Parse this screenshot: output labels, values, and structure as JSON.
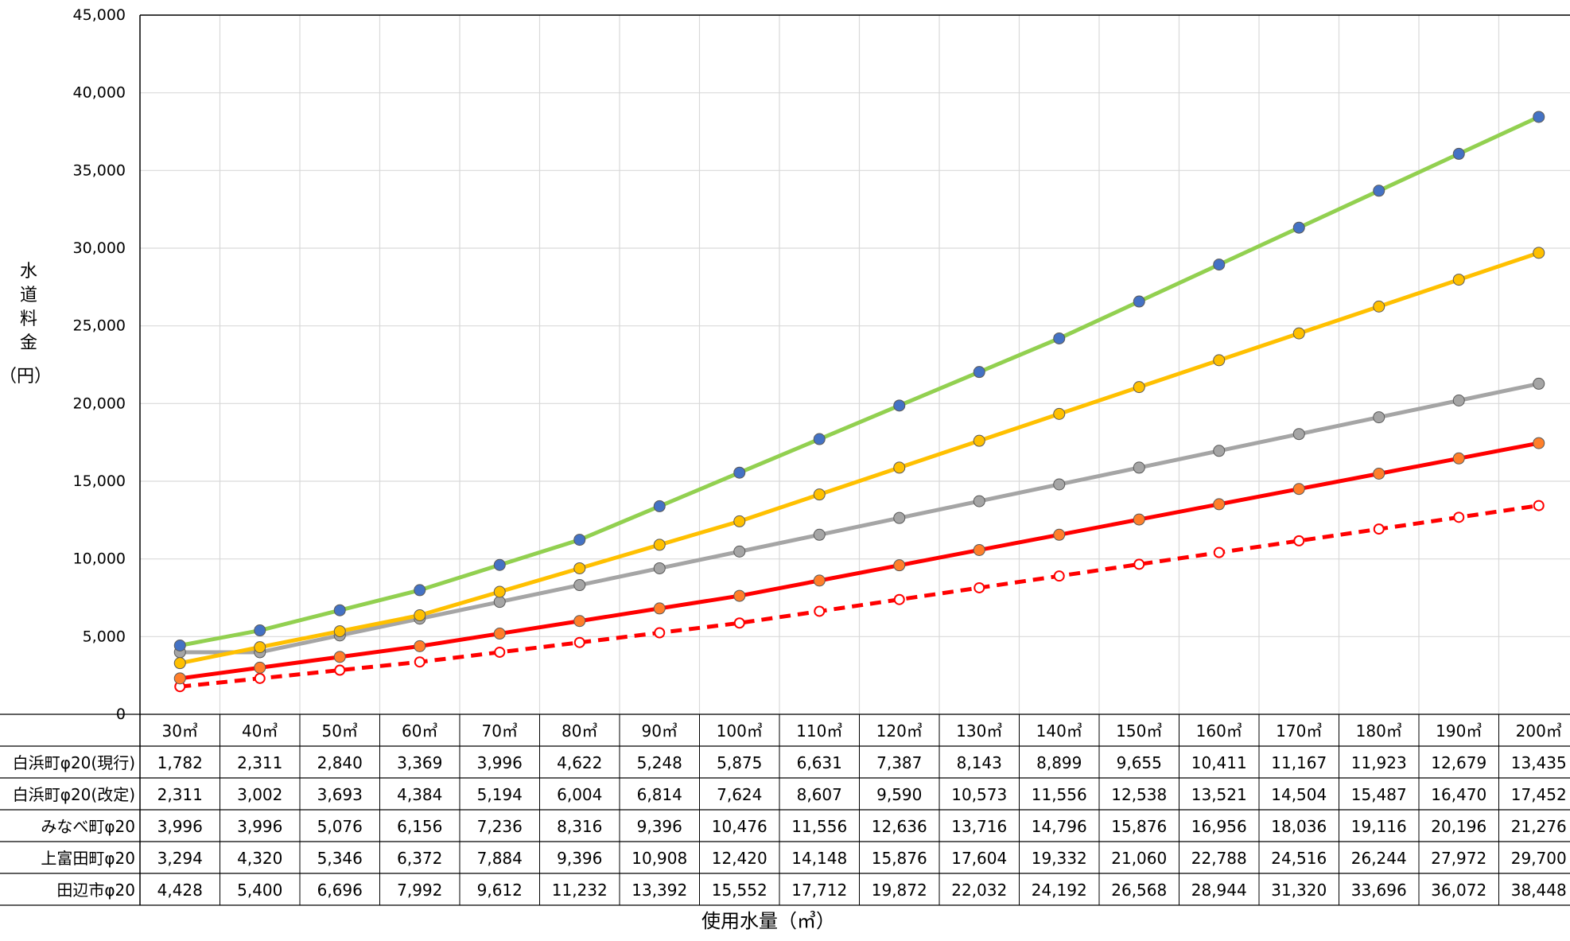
{
  "chart_data": {
    "type": "line",
    "ylabel": "水道料金（円）",
    "xlabel": "使用水量（㎥）",
    "ylim": [
      0,
      45000
    ],
    "yticks": [
      0,
      5000,
      10000,
      15000,
      20000,
      25000,
      30000,
      35000,
      40000,
      45000
    ],
    "ytick_labels": [
      "0",
      "5,000",
      "10,000",
      "15,000",
      "20,000",
      "25,000",
      "30,000",
      "35,000",
      "40,000",
      "45,000"
    ],
    "grid": true,
    "legend": "data table below chart",
    "categories": [
      "30㎥",
      "40㎥",
      "50㎥",
      "60㎥",
      "70㎥",
      "80㎥",
      "90㎥",
      "100㎥",
      "110㎥",
      "120㎥",
      "130㎥",
      "140㎥",
      "150㎥",
      "160㎥",
      "170㎥",
      "180㎥",
      "190㎥",
      "200㎥"
    ],
    "series": [
      {
        "name": "白浜町φ20(現行)",
        "color": "#ff0000",
        "line_style": "dashed",
        "marker": "open-circle",
        "values": [
          1782,
          2311,
          2840,
          3369,
          3996,
          4622,
          5248,
          5875,
          6631,
          7387,
          8143,
          8899,
          9655,
          10411,
          11167,
          11923,
          12679,
          13435
        ],
        "labels": [
          "1,782",
          "2,311",
          "2,840",
          "3,369",
          "3,996",
          "4,622",
          "5,248",
          "5,875",
          "6,631",
          "7,387",
          "8,143",
          "8,899",
          "9,655",
          "10,411",
          "11,167",
          "11,923",
          "12,679",
          "13,435"
        ]
      },
      {
        "name": "白浜町φ20(改定)",
        "color": "#ff0000",
        "marker_color": "#ff7f2a",
        "line_style": "solid",
        "marker": "filled-circle",
        "values": [
          2311,
          3002,
          3693,
          4384,
          5194,
          6004,
          6814,
          7624,
          8607,
          9590,
          10573,
          11556,
          12538,
          13521,
          14504,
          15487,
          16470,
          17452
        ],
        "labels": [
          "2,311",
          "3,002",
          "3,693",
          "4,384",
          "5,194",
          "6,004",
          "6,814",
          "7,624",
          "8,607",
          "9,590",
          "10,573",
          "11,556",
          "12,538",
          "13,521",
          "14,504",
          "15,487",
          "16,470",
          "17,452"
        ]
      },
      {
        "name": "みなべ町φ20",
        "color": "#a5a5a5",
        "marker_color": "#a5a5a5",
        "line_style": "solid",
        "marker": "filled-circle",
        "values": [
          3996,
          3996,
          5076,
          6156,
          7236,
          8316,
          9396,
          10476,
          11556,
          12636,
          13716,
          14796,
          15876,
          16956,
          18036,
          19116,
          20196,
          21276
        ],
        "labels": [
          "3,996",
          "3,996",
          "5,076",
          "6,156",
          "7,236",
          "8,316",
          "9,396",
          "10,476",
          "11,556",
          "12,636",
          "13,716",
          "14,796",
          "15,876",
          "16,956",
          "18,036",
          "19,116",
          "20,196",
          "21,276"
        ]
      },
      {
        "name": "上富田町φ20",
        "color": "#ffc000",
        "marker_color": "#ffc000",
        "line_style": "solid",
        "marker": "filled-circle",
        "values": [
          3294,
          4320,
          5346,
          6372,
          7884,
          9396,
          10908,
          12420,
          14148,
          15876,
          17604,
          19332,
          21060,
          22788,
          24516,
          26244,
          27972,
          29700
        ],
        "labels": [
          "3,294",
          "4,320",
          "5,346",
          "6,372",
          "7,884",
          "9,396",
          "10,908",
          "12,420",
          "14,148",
          "15,876",
          "17,604",
          "19,332",
          "21,060",
          "22,788",
          "24,516",
          "26,244",
          "27,972",
          "29,700"
        ]
      },
      {
        "name": "田辺市φ20",
        "color": "#92d050",
        "marker_color": "#4472c4",
        "line_style": "solid",
        "marker": "filled-circle",
        "values": [
          4428,
          5400,
          6696,
          7992,
          9612,
          11232,
          13392,
          15552,
          17712,
          19872,
          22032,
          24192,
          26568,
          28944,
          31320,
          33696,
          36072,
          38448
        ],
        "labels": [
          "4,428",
          "5,400",
          "6,696",
          "7,992",
          "9,612",
          "11,232",
          "13,392",
          "15,552",
          "17,712",
          "19,872",
          "22,032",
          "24,192",
          "26,568",
          "28,944",
          "31,320",
          "33,696",
          "36,072",
          "38,448"
        ]
      }
    ]
  }
}
